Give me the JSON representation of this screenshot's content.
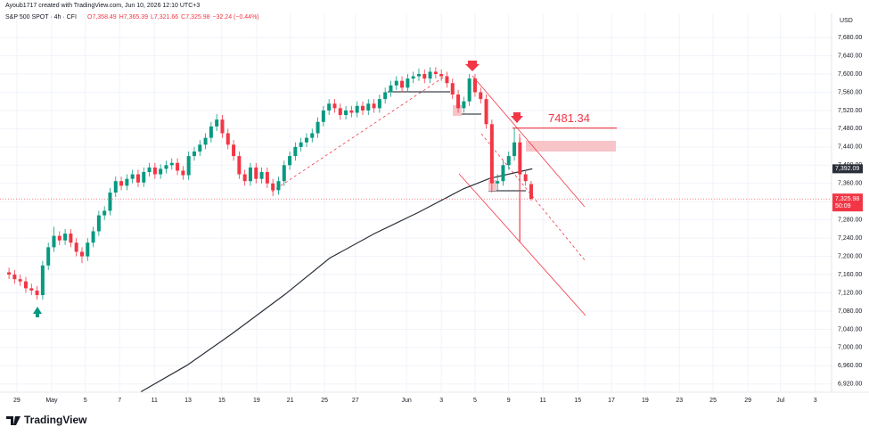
{
  "chart_data": {
    "type": "candlestick",
    "title": "Ayoub1717 created with TradingView.com, Jun 10, 2026 12:10 UTC+3",
    "symbol": "S&P 500 SPOT · 4h · CFI",
    "ohlc_labels": [
      "O7,358.49",
      "H7,365.39",
      "L7,321.66",
      "C7,325.98"
    ],
    "change_label": "−32.24 (−0.44%)",
    "currency": "USD",
    "logo": "TradingView",
    "up_color": "#089981",
    "down_color": "#f23645",
    "candles": [
      [
        7165,
        7175,
        7150,
        7160
      ],
      [
        7160,
        7170,
        7140,
        7150
      ],
      [
        7150,
        7160,
        7135,
        7145
      ],
      [
        7145,
        7155,
        7120,
        7130
      ],
      [
        7130,
        7140,
        7115,
        7125
      ],
      [
        7125,
        7135,
        7105,
        7115
      ],
      [
        7115,
        7190,
        7105,
        7180
      ],
      [
        7180,
        7230,
        7170,
        7220
      ],
      [
        7220,
        7265,
        7210,
        7245
      ],
      [
        7245,
        7255,
        7225,
        7235
      ],
      [
        7235,
        7260,
        7225,
        7250
      ],
      [
        7250,
        7260,
        7220,
        7230
      ],
      [
        7230,
        7240,
        7200,
        7210
      ],
      [
        7210,
        7220,
        7185,
        7200
      ],
      [
        7200,
        7240,
        7190,
        7230
      ],
      [
        7230,
        7265,
        7220,
        7255
      ],
      [
        7255,
        7300,
        7245,
        7290
      ],
      [
        7290,
        7310,
        7280,
        7300
      ],
      [
        7300,
        7350,
        7290,
        7340
      ],
      [
        7340,
        7375,
        7330,
        7365
      ],
      [
        7365,
        7375,
        7345,
        7355
      ],
      [
        7355,
        7380,
        7345,
        7370
      ],
      [
        7370,
        7390,
        7360,
        7380
      ],
      [
        7380,
        7390,
        7352,
        7362
      ],
      [
        7362,
        7395,
        7352,
        7385
      ],
      [
        7385,
        7405,
        7375,
        7395
      ],
      [
        7395,
        7405,
        7370,
        7380
      ],
      [
        7380,
        7402,
        7370,
        7392
      ],
      [
        7392,
        7410,
        7382,
        7400
      ],
      [
        7400,
        7415,
        7390,
        7405
      ],
      [
        7405,
        7415,
        7378,
        7388
      ],
      [
        7388,
        7398,
        7368,
        7378
      ],
      [
        7378,
        7430,
        7368,
        7420
      ],
      [
        7420,
        7440,
        7410,
        7430
      ],
      [
        7430,
        7455,
        7420,
        7445
      ],
      [
        7445,
        7470,
        7435,
        7460
      ],
      [
        7460,
        7495,
        7450,
        7485
      ],
      [
        7485,
        7512,
        7475,
        7500
      ],
      [
        7500,
        7510,
        7460,
        7470
      ],
      [
        7470,
        7480,
        7435,
        7445
      ],
      [
        7445,
        7455,
        7410,
        7420
      ],
      [
        7420,
        7430,
        7370,
        7380
      ],
      [
        7380,
        7390,
        7355,
        7365
      ],
      [
        7365,
        7405,
        7355,
        7395
      ],
      [
        7395,
        7405,
        7360,
        7370
      ],
      [
        7370,
        7395,
        7360,
        7385
      ],
      [
        7385,
        7395,
        7350,
        7360
      ],
      [
        7360,
        7370,
        7332,
        7345
      ],
      [
        7345,
        7375,
        7335,
        7365
      ],
      [
        7365,
        7410,
        7355,
        7400
      ],
      [
        7400,
        7430,
        7390,
        7420
      ],
      [
        7420,
        7450,
        7410,
        7440
      ],
      [
        7440,
        7460,
        7430,
        7450
      ],
      [
        7450,
        7470,
        7440,
        7460
      ],
      [
        7460,
        7480,
        7450,
        7470
      ],
      [
        7470,
        7505,
        7460,
        7495
      ],
      [
        7495,
        7530,
        7485,
        7520
      ],
      [
        7520,
        7545,
        7510,
        7535
      ],
      [
        7535,
        7545,
        7515,
        7525
      ],
      [
        7525,
        7535,
        7500,
        7510
      ],
      [
        7510,
        7530,
        7500,
        7520
      ],
      [
        7520,
        7530,
        7505,
        7515
      ],
      [
        7515,
        7540,
        7505,
        7530
      ],
      [
        7530,
        7540,
        7510,
        7520
      ],
      [
        7520,
        7545,
        7510,
        7535
      ],
      [
        7535,
        7545,
        7515,
        7525
      ],
      [
        7525,
        7555,
        7515,
        7545
      ],
      [
        7545,
        7570,
        7535,
        7560
      ],
      [
        7560,
        7585,
        7550,
        7575
      ],
      [
        7575,
        7595,
        7565,
        7585
      ],
      [
        7585,
        7595,
        7560,
        7570
      ],
      [
        7570,
        7600,
        7560,
        7590
      ],
      [
        7590,
        7605,
        7580,
        7595
      ],
      [
        7595,
        7612,
        7585,
        7600
      ],
      [
        7600,
        7610,
        7580,
        7590
      ],
      [
        7590,
        7615,
        7580,
        7605
      ],
      [
        7605,
        7615,
        7590,
        7600
      ],
      [
        7600,
        7610,
        7585,
        7595
      ],
      [
        7595,
        7605,
        7570,
        7580
      ],
      [
        7580,
        7590,
        7545,
        7555
      ],
      [
        7555,
        7565,
        7515,
        7525
      ],
      [
        7525,
        7550,
        7515,
        7540
      ],
      [
        7540,
        7600,
        7530,
        7590
      ],
      [
        7590,
        7600,
        7550,
        7560
      ],
      [
        7560,
        7570,
        7535,
        7545
      ],
      [
        7545,
        7555,
        7480,
        7490
      ],
      [
        7490,
        7500,
        7340,
        7360
      ],
      [
        7360,
        7380,
        7345,
        7365
      ],
      [
        7365,
        7410,
        7355,
        7400
      ],
      [
        7400,
        7430,
        7390,
        7420
      ],
      [
        7420,
        7481.34,
        7410,
        7450
      ],
      [
        7450,
        7460,
        7230,
        7380
      ],
      [
        7380,
        7390,
        7355,
        7365
      ],
      [
        7358.49,
        7365.39,
        7321.66,
        7325.98
      ]
    ],
    "moving_average": {
      "color": "#2a2e39",
      "x": [
        23.5,
        31.7,
        39.7,
        49.2,
        57.1,
        65.1,
        73,
        80.9,
        85.6,
        93.2
      ],
      "values": [
        6903,
        6961,
        7030,
        7117,
        7196,
        7250,
        7297,
        7348,
        7371,
        7392.09
      ],
      "value_label": "7,392.09"
    },
    "last_price_label": "7,325.98",
    "countdown": "50:09",
    "annotation": {
      "value": 7481.34,
      "label": "7481.34"
    },
    "xlim": [
      -1.6,
      146.5
    ],
    "ylim": [
      6902,
      7733
    ],
    "yticks": [
      {
        "value": 6920,
        "label": "6,920.00"
      },
      {
        "value": 6960,
        "label": "6,960.00"
      },
      {
        "value": 7000,
        "label": "7,000.00"
      },
      {
        "value": 7040,
        "label": "7,040.00"
      },
      {
        "value": 7080,
        "label": "7,080.00"
      },
      {
        "value": 7120,
        "label": "7,120.00"
      },
      {
        "value": 7160,
        "label": "7,160.00"
      },
      {
        "value": 7200,
        "label": "7,200.00"
      },
      {
        "value": 7240,
        "label": "7,240.00"
      },
      {
        "value": 7280,
        "label": "7,280.00"
      },
      {
        "value": 7320,
        "label": "7,320.00"
      },
      {
        "value": 7360,
        "label": "7,360.00"
      },
      {
        "value": 7400,
        "label": "7,400.00"
      },
      {
        "value": 7440,
        "label": "7,440.00"
      },
      {
        "value": 7480,
        "label": "7,480.00"
      },
      {
        "value": 7520,
        "label": "7,520.00"
      },
      {
        "value": 7560,
        "label": "7,560.00"
      },
      {
        "value": 7600,
        "label": "7,600.00"
      },
      {
        "value": 7640,
        "label": "7,640.00"
      },
      {
        "value": 7680,
        "label": "7,680.00"
      }
    ],
    "xticks": [
      {
        "value": 1.4,
        "label": "29"
      },
      {
        "value": 7.6,
        "label": "May"
      },
      {
        "value": 13.6,
        "label": "5"
      },
      {
        "value": 19.7,
        "label": "7"
      },
      {
        "value": 25.9,
        "label": "11"
      },
      {
        "value": 31.9,
        "label": "13"
      },
      {
        "value": 37.9,
        "label": "15"
      },
      {
        "value": 44.1,
        "label": "19"
      },
      {
        "value": 50.1,
        "label": "21"
      },
      {
        "value": 56.2,
        "label": "25"
      },
      {
        "value": 61.7,
        "label": "27"
      },
      {
        "value": 70.8,
        "label": "Jun"
      },
      {
        "value": 77,
        "label": "3"
      },
      {
        "value": 83,
        "label": "5"
      },
      {
        "value": 89,
        "label": "9"
      },
      {
        "value": 95.1,
        "label": "11"
      },
      {
        "value": 101.3,
        "label": "15"
      },
      {
        "value": 107.3,
        "label": "17"
      },
      {
        "value": 113.3,
        "label": "19"
      },
      {
        "value": 119.4,
        "label": "23"
      },
      {
        "value": 125.4,
        "label": "25"
      },
      {
        "value": 131.6,
        "label": "29"
      },
      {
        "value": 137.4,
        "label": "Jul"
      },
      {
        "value": 143.6,
        "label": "3"
      }
    ],
    "grid": true
  }
}
